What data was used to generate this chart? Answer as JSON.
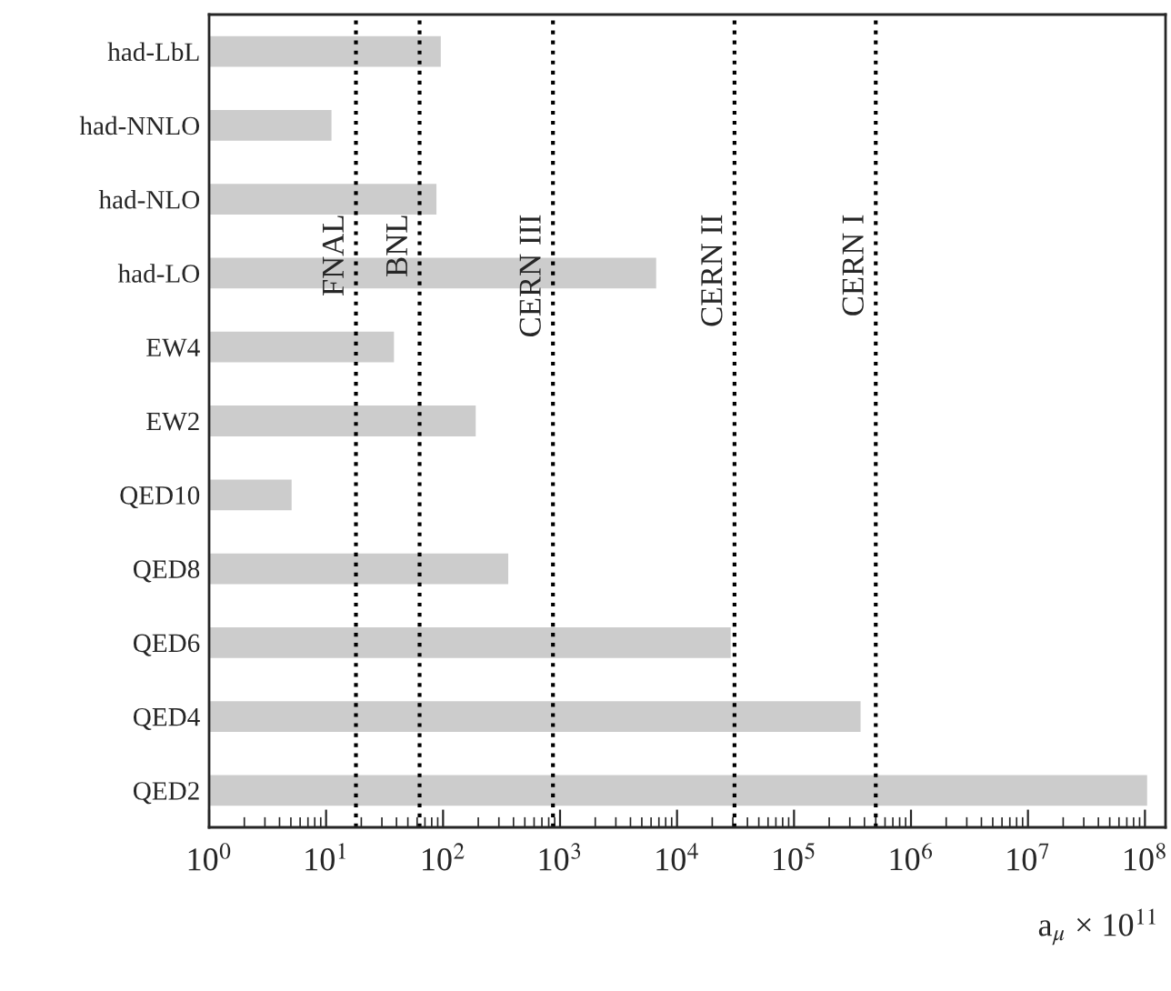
{
  "chart_data": {
    "type": "bar",
    "orientation": "horizontal",
    "log": "x",
    "grid": false,
    "legend": false,
    "categories": [
      "had-LbL",
      "had-NNLO",
      "had-NLO",
      "had-LO",
      "EW4",
      "EW2",
      "QED10",
      "QED8",
      "QED6",
      "QED4",
      "QED2"
    ],
    "values": [
      98,
      11.4,
      90,
      6800,
      39,
      195,
      5.2,
      370,
      29500,
      380000,
      107000000
    ],
    "color": "#cccccc",
    "xlabel": "a$_{μ}$ × 10$^{11}$",
    "xlim": [
      1,
      150000000
    ],
    "xticks": [
      {
        "value": 1,
        "label": "10$^{0}$"
      },
      {
        "value": 10,
        "label": "10$^{1}$"
      },
      {
        "value": 100,
        "label": "10$^{2}$"
      },
      {
        "value": 1000,
        "label": "10$^{3}$"
      },
      {
        "value": 10000,
        "label": "10$^{4}$"
      },
      {
        "value": 100000,
        "label": "10$^{5}$"
      },
      {
        "value": 1000000,
        "label": "10$^{6}$"
      },
      {
        "value": 10000000,
        "label": "10$^{7}$"
      },
      {
        "value": 100000000,
        "label": "10$^{8}$"
      }
    ],
    "ref_lines": [
      {
        "axis": "x",
        "value": 18,
        "label": "FNAL",
        "color": "#000000",
        "line_style": "dotted"
      },
      {
        "axis": "x",
        "value": 63,
        "label": "BNL",
        "color": "#000000",
        "line_style": "dotted"
      },
      {
        "axis": "x",
        "value": 870,
        "label": "CERN III",
        "color": "#000000",
        "line_style": "dotted"
      },
      {
        "axis": "x",
        "value": 31000,
        "label": "CERN II",
        "color": "#000000",
        "line_style": "dotted"
      },
      {
        "axis": "x",
        "value": 500000,
        "label": "CERN I",
        "color": "#000000",
        "line_style": "dotted"
      }
    ]
  }
}
